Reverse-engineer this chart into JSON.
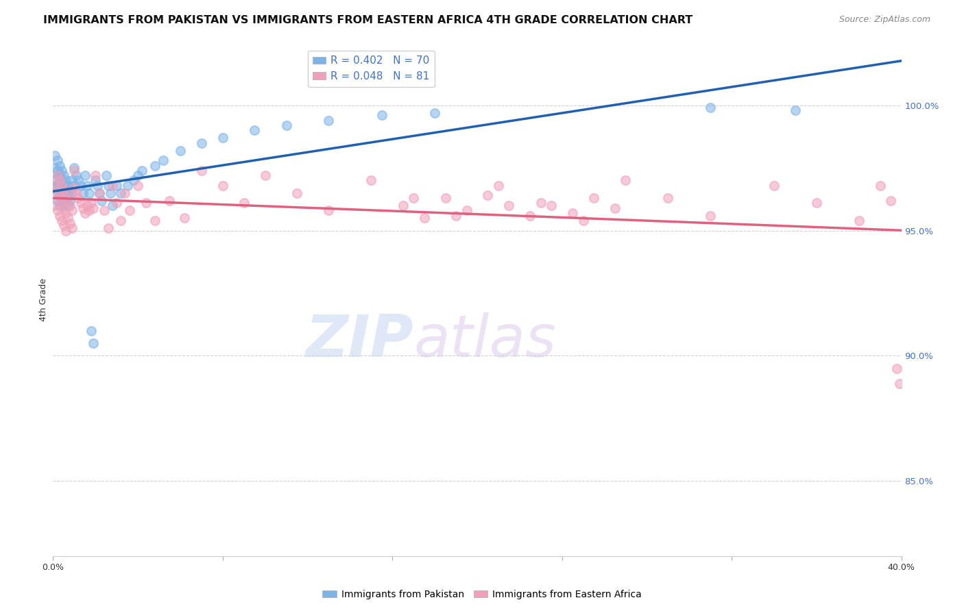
{
  "title": "IMMIGRANTS FROM PAKISTAN VS IMMIGRANTS FROM EASTERN AFRICA 4TH GRADE CORRELATION CHART",
  "source": "Source: ZipAtlas.com",
  "ylabel": "4th Grade",
  "ytick_labels": [
    "100.0%",
    "95.0%",
    "90.0%",
    "85.0%"
  ],
  "ytick_values": [
    1.0,
    0.95,
    0.9,
    0.85
  ],
  "xlim": [
    0.0,
    0.4
  ],
  "ylim": [
    0.82,
    1.025
  ],
  "legend_blue_R": "0.402",
  "legend_blue_N": "70",
  "legend_pink_R": "0.048",
  "legend_pink_N": "81",
  "blue_color": "#7cb4e8",
  "pink_color": "#f0a0b8",
  "blue_line_color": "#2060b0",
  "pink_line_color": "#e06080",
  "marker_size": 90,
  "watermark_zip": "ZIP",
  "watermark_atlas": "atlas",
  "title_fontsize": 11.5,
  "source_fontsize": 9,
  "axis_label_fontsize": 9,
  "legend_fontsize": 11,
  "right_ytick_color": "#4472c4",
  "grid_color": "#d0d0d0",
  "blue_x": [
    0.001,
    0.001,
    0.001,
    0.001,
    0.002,
    0.002,
    0.002,
    0.002,
    0.002,
    0.002,
    0.003,
    0.003,
    0.003,
    0.003,
    0.003,
    0.004,
    0.004,
    0.004,
    0.004,
    0.005,
    0.005,
    0.005,
    0.005,
    0.006,
    0.006,
    0.006,
    0.007,
    0.007,
    0.007,
    0.008,
    0.008,
    0.009,
    0.009,
    0.01,
    0.01,
    0.011,
    0.012,
    0.013,
    0.014,
    0.015,
    0.016,
    0.017,
    0.018,
    0.019,
    0.02,
    0.021,
    0.022,
    0.023,
    0.025,
    0.026,
    0.027,
    0.028,
    0.03,
    0.032,
    0.035,
    0.038,
    0.04,
    0.042,
    0.048,
    0.052,
    0.06,
    0.07,
    0.08,
    0.095,
    0.11,
    0.13,
    0.155,
    0.18,
    0.31,
    0.35
  ],
  "blue_y": [
    0.98,
    0.975,
    0.97,
    0.968,
    0.978,
    0.974,
    0.972,
    0.968,
    0.965,
    0.962,
    0.976,
    0.972,
    0.968,
    0.964,
    0.96,
    0.974,
    0.97,
    0.966,
    0.962,
    0.972,
    0.968,
    0.964,
    0.96,
    0.97,
    0.966,
    0.962,
    0.968,
    0.965,
    0.96,
    0.966,
    0.962,
    0.97,
    0.965,
    0.975,
    0.968,
    0.972,
    0.97,
    0.968,
    0.965,
    0.972,
    0.968,
    0.965,
    0.91,
    0.905,
    0.97,
    0.968,
    0.965,
    0.962,
    0.972,
    0.968,
    0.965,
    0.96,
    0.968,
    0.965,
    0.968,
    0.97,
    0.972,
    0.974,
    0.976,
    0.978,
    0.982,
    0.985,
    0.987,
    0.99,
    0.992,
    0.994,
    0.996,
    0.997,
    0.999,
    0.998
  ],
  "pink_x": [
    0.001,
    0.001,
    0.002,
    0.002,
    0.002,
    0.003,
    0.003,
    0.003,
    0.004,
    0.004,
    0.004,
    0.005,
    0.005,
    0.005,
    0.006,
    0.006,
    0.006,
    0.007,
    0.007,
    0.008,
    0.008,
    0.009,
    0.009,
    0.01,
    0.01,
    0.011,
    0.012,
    0.013,
    0.014,
    0.015,
    0.016,
    0.017,
    0.018,
    0.019,
    0.02,
    0.022,
    0.024,
    0.026,
    0.028,
    0.03,
    0.032,
    0.034,
    0.036,
    0.04,
    0.044,
    0.048,
    0.055,
    0.062,
    0.07,
    0.08,
    0.09,
    0.1,
    0.115,
    0.13,
    0.15,
    0.17,
    0.19,
    0.21,
    0.23,
    0.25,
    0.27,
    0.29,
    0.31,
    0.34,
    0.36,
    0.38,
    0.39,
    0.395,
    0.398,
    0.399,
    0.165,
    0.175,
    0.185,
    0.195,
    0.205,
    0.215,
    0.225,
    0.235,
    0.245,
    0.255,
    0.265
  ],
  "pink_y": [
    0.968,
    0.96,
    0.972,
    0.965,
    0.958,
    0.97,
    0.963,
    0.956,
    0.968,
    0.961,
    0.954,
    0.966,
    0.959,
    0.952,
    0.964,
    0.957,
    0.95,
    0.962,
    0.955,
    0.96,
    0.953,
    0.958,
    0.951,
    0.974,
    0.967,
    0.965,
    0.963,
    0.961,
    0.959,
    0.957,
    0.96,
    0.958,
    0.961,
    0.959,
    0.972,
    0.965,
    0.958,
    0.951,
    0.968,
    0.961,
    0.954,
    0.965,
    0.958,
    0.968,
    0.961,
    0.954,
    0.962,
    0.955,
    0.974,
    0.968,
    0.961,
    0.972,
    0.965,
    0.958,
    0.97,
    0.963,
    0.956,
    0.968,
    0.961,
    0.954,
    0.97,
    0.963,
    0.956,
    0.968,
    0.961,
    0.954,
    0.968,
    0.962,
    0.895,
    0.889,
    0.96,
    0.955,
    0.963,
    0.958,
    0.964,
    0.96,
    0.956,
    0.96,
    0.957,
    0.963,
    0.959
  ]
}
